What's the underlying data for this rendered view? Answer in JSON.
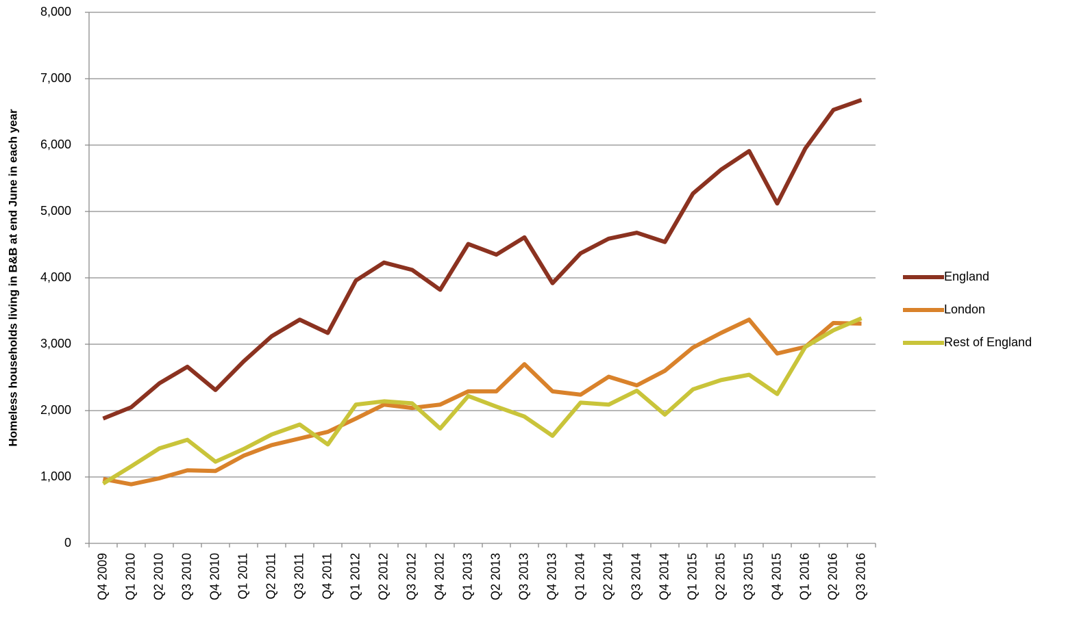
{
  "chart_data": {
    "type": "line",
    "y_label": "Homeless households living in B&B at end June in each year",
    "categories": [
      "Q4 2009",
      "Q1 2010",
      "Q2 2010",
      "Q3 2010",
      "Q4 2010",
      "Q1 2011",
      "Q2 2011",
      "Q3 2011",
      "Q4 2011",
      "Q1 2012",
      "Q2 2012",
      "Q3 2012",
      "Q4 2012",
      "Q1 2013",
      "Q2 2013",
      "Q3 2013",
      "Q4 2013",
      "Q1 2014",
      "Q2 2014",
      "Q3 2014",
      "Q4 2014",
      "Q1 2015",
      "Q2 2015",
      "Q3 2015",
      "Q4 2015",
      "Q1 2016",
      "Q2 2016",
      "Q3 2016"
    ],
    "series": [
      {
        "name": "England",
        "color": "#8b3220",
        "values": [
          1880,
          2050,
          2410,
          2660,
          2310,
          2740,
          3120,
          3370,
          3170,
          3960,
          4230,
          4120,
          3820,
          4510,
          4350,
          4610,
          3920,
          4370,
          4590,
          4680,
          4540,
          5270,
          5630,
          5910,
          5120,
          5950,
          6530,
          6680
        ]
      },
      {
        "name": "London",
        "color": "#d9822b",
        "values": [
          970,
          890,
          980,
          1100,
          1090,
          1320,
          1480,
          1580,
          1680,
          1880,
          2090,
          2040,
          2090,
          2290,
          2290,
          2700,
          2290,
          2240,
          2510,
          2380,
          2600,
          2950,
          3170,
          3370,
          2860,
          2960,
          3320,
          3310
        ]
      },
      {
        "name": "Rest of England",
        "color": "#c9c43a",
        "values": [
          900,
          1160,
          1430,
          1560,
          1230,
          1420,
          1640,
          1790,
          1490,
          2090,
          2140,
          2110,
          1730,
          2220,
          2060,
          1910,
          1620,
          2120,
          2090,
          2300,
          1940,
          2320,
          2460,
          2540,
          2250,
          2960,
          3210,
          3390
        ]
      }
    ],
    "ylim": [
      0,
      8000
    ],
    "yticks": [
      0,
      {
        "value": 1000,
        "label": "1,000"
      },
      {
        "value": 2000,
        "label": "2,000"
      },
      {
        "value": 3000,
        "label": "3,000"
      },
      {
        "value": 4000,
        "label": "4,000"
      },
      {
        "value": 5000,
        "label": "5,000"
      },
      {
        "value": 6000,
        "label": "6,000"
      },
      {
        "value": 7000,
        "label": "7,000"
      },
      {
        "value": 8000,
        "label": "8,000"
      }
    ],
    "grid": true,
    "legend": "right"
  }
}
